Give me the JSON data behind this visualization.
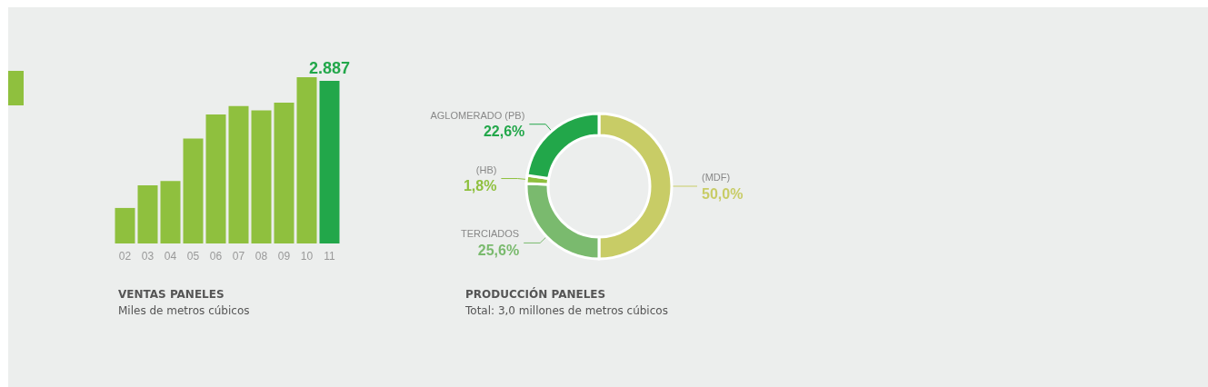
{
  "chart_data": [
    {
      "type": "bar",
      "title": "VENTAS PANELES",
      "subtitle": "Miles de metros cúbicos",
      "categories": [
        "02",
        "03",
        "04",
        "05",
        "06",
        "07",
        "08",
        "09",
        "10",
        "11"
      ],
      "values": [
        630,
        1030,
        1110,
        1860,
        2290,
        2440,
        2360,
        2500,
        2950,
        2887
      ],
      "colors": [
        "#8fc03e",
        "#8fc03e",
        "#8fc03e",
        "#8fc03e",
        "#8fc03e",
        "#8fc03e",
        "#8fc03e",
        "#8fc03e",
        "#8fc03e",
        "#22a74a"
      ],
      "value_labels": [
        null,
        null,
        null,
        null,
        null,
        null,
        null,
        null,
        null,
        "2.887"
      ]
    },
    {
      "type": "donut",
      "title": "PRODUCCIÓN PANELES",
      "subtitle": "Total: 3,0 millones de metros cúbicos",
      "categories": [
        "(MDF)",
        "TERCIADOS",
        "(HB)",
        "AGLOMERADO (PB)"
      ],
      "values": [
        50.0,
        25.6,
        1.8,
        22.6
      ],
      "colors": [
        "#c8cc66",
        "#7aba6e",
        "#8fc03e",
        "#22a74a"
      ],
      "value_labels": [
        "50,0%",
        "25,6%",
        "1,8%",
        "22,6%"
      ]
    }
  ]
}
